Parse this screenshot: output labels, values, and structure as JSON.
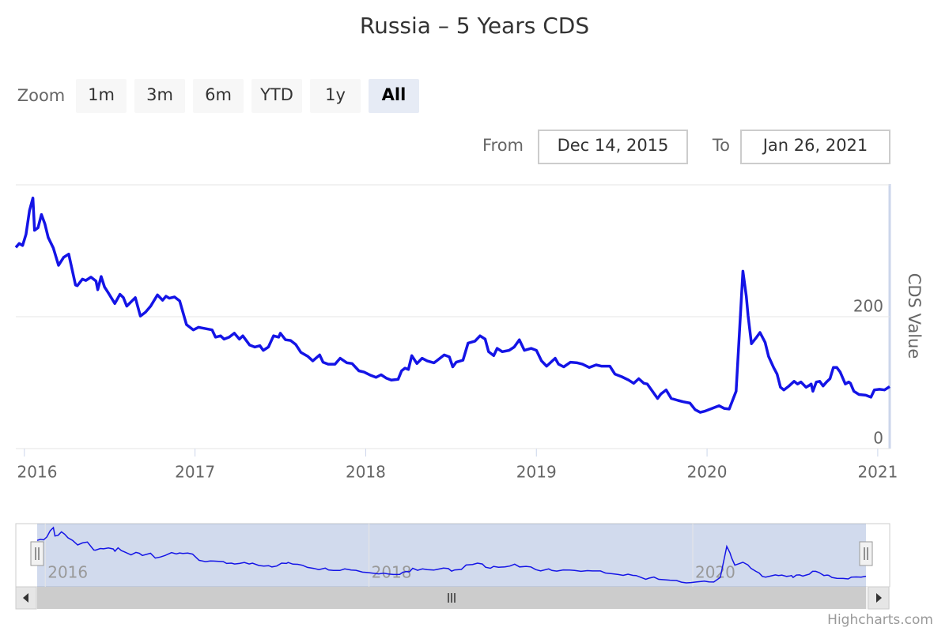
{
  "chart_data": {
    "type": "line",
    "title": "Russia – 5 Years CDS",
    "y_axis_title": "CDS Value",
    "color": "#1414e6",
    "range_selector": {
      "zoom_label": "Zoom",
      "buttons": [
        "1m",
        "3m",
        "6m",
        "YTD",
        "1y",
        "All"
      ],
      "selected": 5,
      "from_label": "From",
      "from": "Dec 14, 2015",
      "to_label": "To",
      "to": "Jan 26, 2021"
    },
    "xlim": [
      2015.95,
      2021.07
    ],
    "xticks": [
      2016,
      2017,
      2018,
      2019,
      2020,
      2021
    ],
    "ylim": [
      0,
      400
    ],
    "yticks": [
      0,
      200
    ],
    "grid": true,
    "navigator": {
      "xticks": [
        2016,
        2018,
        2020
      ]
    },
    "credits": "Highcharts.com",
    "x": [
      2015.95,
      2015.97,
      2015.99,
      2016.01,
      2016.03,
      2016.05,
      2016.06,
      2016.08,
      2016.1,
      2016.12,
      2016.14,
      2016.17,
      2016.2,
      2016.23,
      2016.26,
      2016.3,
      2016.31,
      2016.34,
      2016.36,
      2016.39,
      2016.42,
      2016.43,
      2016.45,
      2016.47,
      2016.49,
      2016.53,
      2016.56,
      2016.58,
      2016.6,
      2016.65,
      2016.68,
      2016.71,
      2016.74,
      2016.78,
      2016.81,
      2016.83,
      2016.85,
      2016.88,
      2016.91,
      2016.95,
      2016.99,
      2017.02,
      2017.04,
      2017.1,
      2017.12,
      2017.15,
      2017.17,
      2017.2,
      2017.23,
      2017.26,
      2017.28,
      2017.32,
      2017.35,
      2017.38,
      2017.4,
      2017.43,
      2017.46,
      2017.49,
      2017.5,
      2017.53,
      2017.56,
      2017.59,
      2017.62,
      2017.66,
      2017.69,
      2017.73,
      2017.75,
      2017.78,
      2017.82,
      2017.85,
      2017.89,
      2017.92,
      2017.96,
      2017.99,
      2018.03,
      2018.06,
      2018.09,
      2018.12,
      2018.15,
      2018.19,
      2018.21,
      2018.23,
      2018.25,
      2018.27,
      2018.3,
      2018.33,
      2018.36,
      2018.4,
      2018.42,
      2018.46,
      2018.49,
      2018.51,
      2018.53,
      2018.57,
      2018.6,
      2018.64,
      2018.67,
      2018.7,
      2018.72,
      2018.75,
      2018.77,
      2018.8,
      2018.84,
      2018.87,
      2018.9,
      2018.93,
      2018.97,
      2019.0,
      2019.03,
      2019.06,
      2019.11,
      2019.13,
      2019.16,
      2019.2,
      2019.24,
      2019.27,
      2019.31,
      2019.35,
      2019.38,
      2019.43,
      2019.46,
      2019.5,
      2019.54,
      2019.57,
      2019.6,
      2019.63,
      2019.65,
      2019.68,
      2019.71,
      2019.73,
      2019.76,
      2019.79,
      2019.83,
      2019.86,
      2019.9,
      2019.93,
      2019.96,
      2019.99,
      2020.02,
      2020.05,
      2020.07,
      2020.1,
      2020.13,
      2020.17,
      2020.21,
      2020.23,
      2020.24,
      2020.26,
      2020.29,
      2020.31,
      2020.34,
      2020.36,
      2020.39,
      2020.41,
      2020.43,
      2020.45,
      2020.48,
      2020.51,
      2020.53,
      2020.55,
      2020.58,
      2020.6,
      2020.61,
      2020.62,
      2020.64,
      2020.66,
      2020.68,
      2020.7,
      2020.72,
      2020.74,
      2020.76,
      2020.78,
      2020.81,
      2020.83,
      2020.84,
      2020.86,
      2020.89,
      2020.93,
      2020.96,
      2020.98,
      2021.01,
      2021.04,
      2021.07
    ],
    "values": [
      305,
      311,
      308,
      325,
      361,
      380,
      331,
      335,
      355,
      341,
      320,
      304,
      278,
      290,
      295,
      248,
      247,
      257,
      255,
      260,
      254,
      241,
      261,
      245,
      237,
      220,
      234,
      229,
      216,
      229,
      201,
      207,
      216,
      233,
      225,
      231,
      228,
      230,
      224,
      188,
      180,
      184,
      183,
      180,
      169,
      171,
      166,
      169,
      175,
      166,
      171,
      157,
      154,
      156,
      149,
      154,
      171,
      169,
      175,
      165,
      164,
      158,
      146,
      140,
      133,
      142,
      131,
      128,
      128,
      137,
      130,
      129,
      118,
      116,
      111,
      108,
      112,
      107,
      104,
      105,
      118,
      122,
      120,
      141,
      129,
      137,
      133,
      130,
      134,
      142,
      139,
      124,
      131,
      134,
      160,
      163,
      171,
      166,
      147,
      141,
      152,
      147,
      149,
      154,
      165,
      149,
      152,
      149,
      133,
      125,
      137,
      128,
      124,
      131,
      130,
      128,
      123,
      127,
      125,
      125,
      113,
      109,
      104,
      99,
      106,
      99,
      98,
      87,
      76,
      83,
      89,
      76,
      73,
      71,
      69,
      59,
      55,
      57,
      60,
      63,
      65,
      61,
      60,
      87,
      269,
      231,
      202,
      159,
      169,
      176,
      161,
      140,
      123,
      113,
      93,
      89,
      95,
      102,
      98,
      101,
      93,
      96,
      98,
      87,
      101,
      102,
      95,
      101,
      106,
      123,
      123,
      116,
      98,
      101,
      99,
      87,
      82,
      81,
      78,
      89,
      90,
      89,
      94
    ]
  }
}
